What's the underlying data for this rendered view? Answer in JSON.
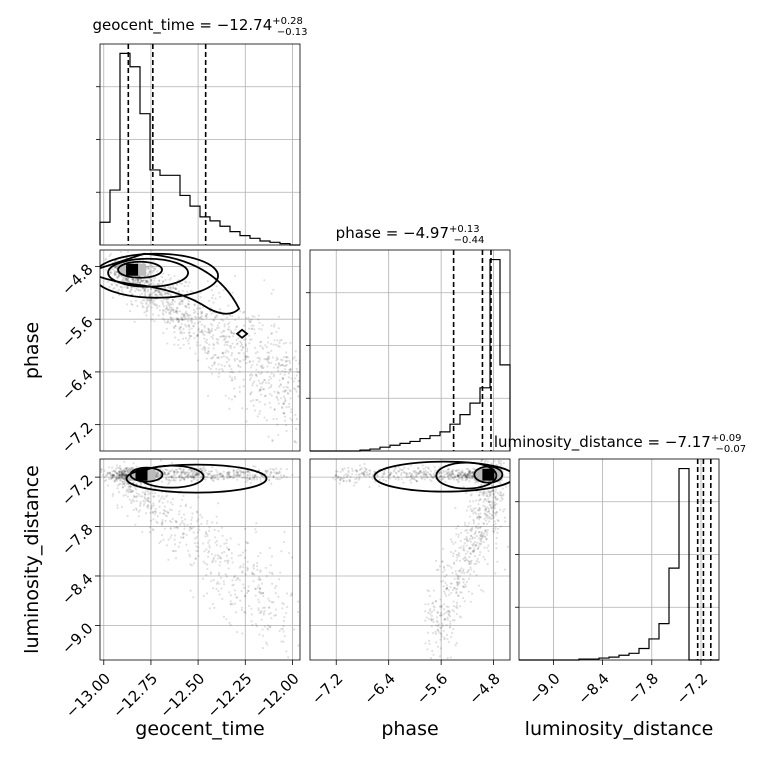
{
  "chart_data": {
    "type": "corner",
    "parameters": [
      {
        "key": "geocent_time",
        "label": "geocent_time",
        "range": [
          -13.02,
          -11.96
        ],
        "ticks": [
          -13.0,
          -12.75,
          -12.5,
          -12.25,
          -12.0
        ],
        "tick_labels": [
          "−13.00",
          "−12.75",
          "−12.50",
          "−12.25",
          "−12.00"
        ]
      },
      {
        "key": "phase",
        "label": "phase",
        "range": [
          -7.6,
          -4.55
        ],
        "ticks": [
          -7.2,
          -6.4,
          -5.6,
          -4.8
        ],
        "tick_labels": [
          "−7.2",
          "−6.4",
          "−5.6",
          "−4.8"
        ]
      },
      {
        "key": "luminosity_distance",
        "label": "luminosity_distance",
        "range": [
          -9.42,
          -6.98
        ],
        "ticks": [
          -9.0,
          -8.4,
          -7.8,
          -7.2
        ],
        "tick_labels": [
          "−9.0",
          "−8.4",
          "−7.8",
          "−7.2"
        ]
      }
    ],
    "titles": [
      {
        "name": "geocent_time",
        "median": "−12.74",
        "plus": "+0.28",
        "minus": "−0.13",
        "prefix": "geocent_time = "
      },
      {
        "name": "phase",
        "median": "−4.97",
        "plus": "+0.13",
        "minus": "−0.44",
        "prefix": "phase = "
      },
      {
        "name": "luminosity_distance",
        "median": "−7.17",
        "plus": "+0.09",
        "minus": "−0.07",
        "prefix": "luminosity_distance = "
      }
    ],
    "histograms": [
      {
        "param": "geocent_time",
        "bin_start": -13.02,
        "bin_width": 0.053,
        "counts": [
          0.17,
          0.41,
          1.43,
          1.33,
          0.98,
          0.56,
          0.52,
          0.52,
          0.37,
          0.29,
          0.21,
          0.18,
          0.14,
          0.1,
          0.07,
          0.05,
          0.03,
          0.02,
          0.01,
          0.0
        ],
        "quantiles": [
          -12.87,
          -12.74,
          -12.46
        ],
        "ymax": 1.5
      },
      {
        "param": "phase",
        "bin_start": -7.6,
        "bin_width": 0.1525,
        "counts": [
          0.0,
          0.0,
          0.0,
          0.0,
          0.0,
          0.005,
          0.01,
          0.02,
          0.03,
          0.04,
          0.05,
          0.065,
          0.08,
          0.1,
          0.14,
          0.19,
          0.25,
          0.33,
          1.0,
          0.45
        ],
        "quantiles": [
          -5.41,
          -4.97,
          -4.84
        ],
        "ymax": 1.05
      },
      {
        "param": "luminosity_distance",
        "bin_start": -9.42,
        "bin_width": 0.122,
        "counts": [
          0.0,
          0.0,
          0.0,
          0.0,
          0.0,
          0.0,
          0.005,
          0.005,
          0.01,
          0.015,
          0.025,
          0.035,
          0.06,
          0.11,
          0.19,
          0.48,
          1.0,
          0.0,
          0.0,
          0.0
        ],
        "quantiles": [
          -7.24,
          -7.17,
          -7.08
        ],
        "ymax": 1.05
      }
    ],
    "scatter_descriptions": [
      {
        "x": "geocent_time",
        "y": "phase",
        "mode": [
          -12.85,
          -4.85
        ]
      },
      {
        "x": "geocent_time",
        "y": "luminosity_distance",
        "mode": [
          -12.8,
          -7.17
        ]
      },
      {
        "x": "phase",
        "y": "luminosity_distance",
        "mode": [
          -4.88,
          -7.17
        ]
      }
    ],
    "grid": true
  }
}
